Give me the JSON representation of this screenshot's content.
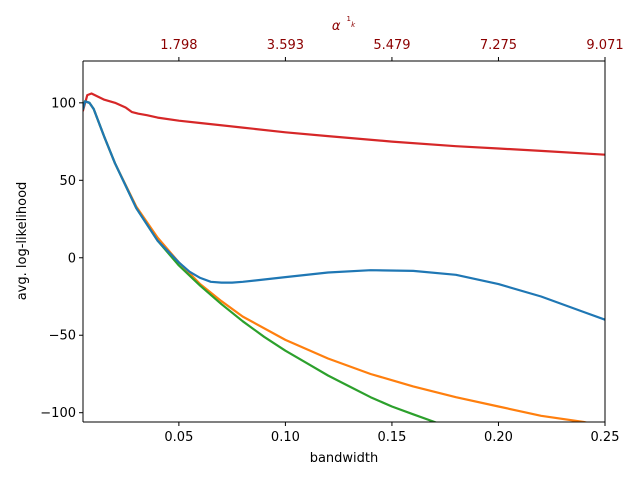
{
  "chart_data": {
    "type": "line",
    "xlabel": "bandwidth",
    "ylabel": "avg. log-likelihood",
    "xlim": [
      0.005,
      0.25
    ],
    "ylim": [
      -106,
      127
    ],
    "x_ticks": [
      0.05,
      0.1,
      0.15,
      0.2,
      0.25
    ],
    "x_tick_labels": [
      "0.05",
      "0.10",
      "0.15",
      "0.20",
      "0.25"
    ],
    "y_ticks": [
      -100,
      -50,
      0,
      50,
      100
    ],
    "y_tick_labels": [
      "−100",
      "−50",
      "0",
      "50",
      "100"
    ],
    "top_axis": {
      "label": "α^(1/k)",
      "label_base": "α",
      "label_exp_num": "1",
      "label_exp_den": "k",
      "color": "#8b0000",
      "ticks_at_x": [
        0.05,
        0.1,
        0.15,
        0.2,
        0.25
      ],
      "tick_labels": [
        "1.798",
        "3.593",
        "5.479",
        "7.275",
        "9.071"
      ]
    },
    "vline_x": 0.005,
    "vline_color": "#d62728",
    "grid": false,
    "series": [
      {
        "color": "#d62728",
        "x": [
          0.005,
          0.007,
          0.009,
          0.012,
          0.015,
          0.02,
          0.025,
          0.028,
          0.031,
          0.035,
          0.04,
          0.05,
          0.06,
          0.08,
          0.1,
          0.12,
          0.15,
          0.18,
          0.2,
          0.22,
          0.25
        ],
        "y": [
          95,
          105,
          106,
          104,
          102,
          100,
          97,
          94,
          93,
          92,
          90.5,
          88.5,
          87,
          84,
          81,
          78.5,
          75,
          72,
          70.5,
          69,
          66.5
        ]
      },
      {
        "color": "#ff7f0e",
        "x": [
          0.005,
          0.006,
          0.008,
          0.01,
          0.015,
          0.02,
          0.03,
          0.04,
          0.05,
          0.06,
          0.07,
          0.08,
          0.1,
          0.12,
          0.14,
          0.16,
          0.18,
          0.2,
          0.22,
          0.24,
          0.25
        ],
        "y": [
          96,
          101,
          100,
          96,
          78,
          61,
          33,
          13,
          -3,
          -17,
          -28,
          -38,
          -53,
          -65,
          -75,
          -83,
          -90,
          -96,
          -102,
          -106,
          -109
        ]
      },
      {
        "color": "#2ca02c",
        "x": [
          0.005,
          0.006,
          0.008,
          0.01,
          0.015,
          0.02,
          0.03,
          0.04,
          0.05,
          0.06,
          0.07,
          0.08,
          0.09,
          0.1,
          0.11,
          0.12,
          0.13,
          0.14,
          0.15,
          0.16,
          0.17,
          0.18
        ],
        "y": [
          96,
          101,
          100,
          96,
          78,
          61,
          32,
          11,
          -5,
          -18,
          -30,
          -41,
          -51,
          -60,
          -68,
          -76,
          -83,
          -90,
          -96,
          -101,
          -106,
          -111
        ]
      },
      {
        "color": "#1f77b4",
        "x": [
          0.005,
          0.006,
          0.008,
          0.01,
          0.015,
          0.02,
          0.03,
          0.04,
          0.05,
          0.055,
          0.06,
          0.065,
          0.07,
          0.075,
          0.08,
          0.09,
          0.1,
          0.12,
          0.14,
          0.16,
          0.18,
          0.2,
          0.22,
          0.24,
          0.25
        ],
        "y": [
          96,
          101,
          100,
          96,
          78,
          61,
          32,
          11,
          -3,
          -9,
          -13,
          -15.5,
          -16,
          -16,
          -15.5,
          -14,
          -12.5,
          -9.5,
          -8,
          -8.5,
          -11,
          -17,
          -25,
          -35,
          -40
        ]
      }
    ]
  }
}
